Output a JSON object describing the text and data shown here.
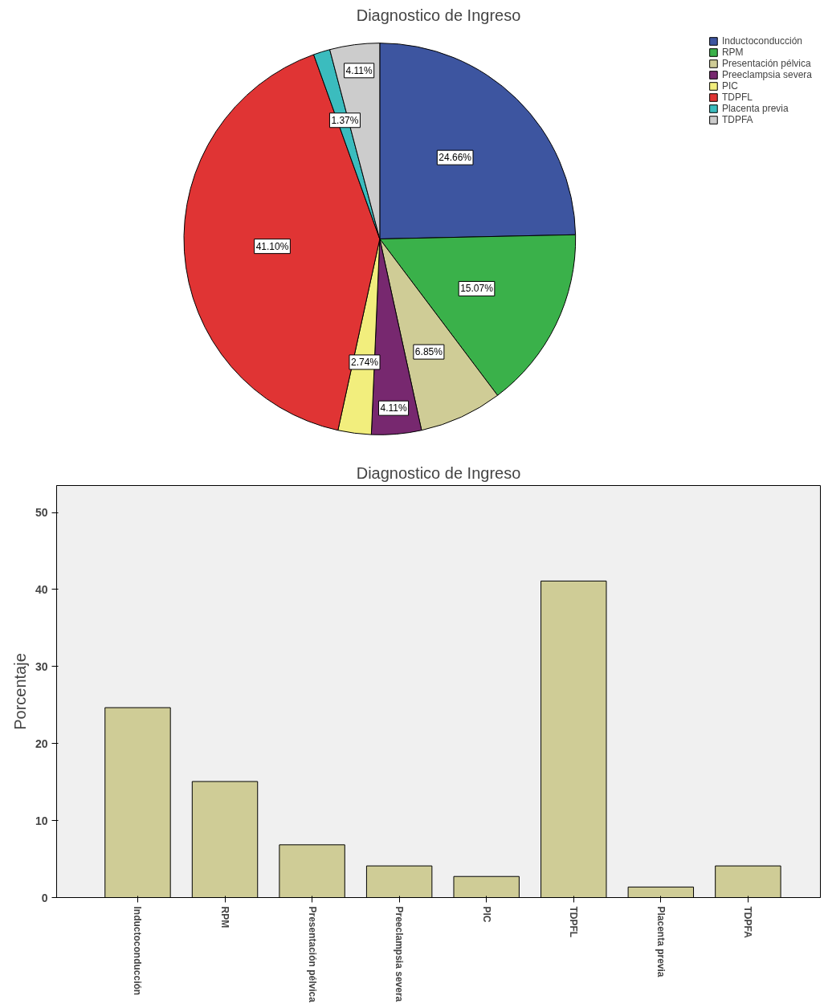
{
  "chart_data": [
    {
      "type": "pie",
      "title": "Diagnostico de Ingreso",
      "categories": [
        "Inductoconducción",
        "RPM",
        "Presentación pélvica",
        "Preeclampsia severa",
        "PIC",
        "TDPFL",
        "Placenta previa",
        "TDPFA"
      ],
      "values": [
        24.66,
        15.07,
        6.85,
        4.11,
        2.74,
        41.1,
        1.37,
        4.11
      ],
      "colors": [
        "#3d55a0",
        "#3ab14a",
        "#cfcc96",
        "#77286f",
        "#f2ee7d",
        "#e03434",
        "#3bbcbe",
        "#cccccc"
      ],
      "value_labels": [
        "24.66%",
        "15.07%",
        "6.85%",
        "4.11%",
        "2.74%",
        "41.10%",
        "1.37%",
        "4.11%"
      ],
      "legend": "top right"
    },
    {
      "type": "bar",
      "title": "Diagnostico de Ingreso",
      "ylabel": "Porcentaje",
      "categories": [
        "Inductoconducción",
        "RPM",
        "Presentación pélvica",
        "Preeclampsia severa",
        "PIC",
        "TDPFL",
        "Placenta previa",
        "TDPFA"
      ],
      "values": [
        24.66,
        15.07,
        6.85,
        4.11,
        2.74,
        41.1,
        1.37,
        4.11
      ],
      "color": "#cfcc96",
      "ylim": [
        0,
        53.5
      ],
      "yticks": [
        0,
        10,
        20,
        30,
        40,
        50
      ]
    }
  ]
}
